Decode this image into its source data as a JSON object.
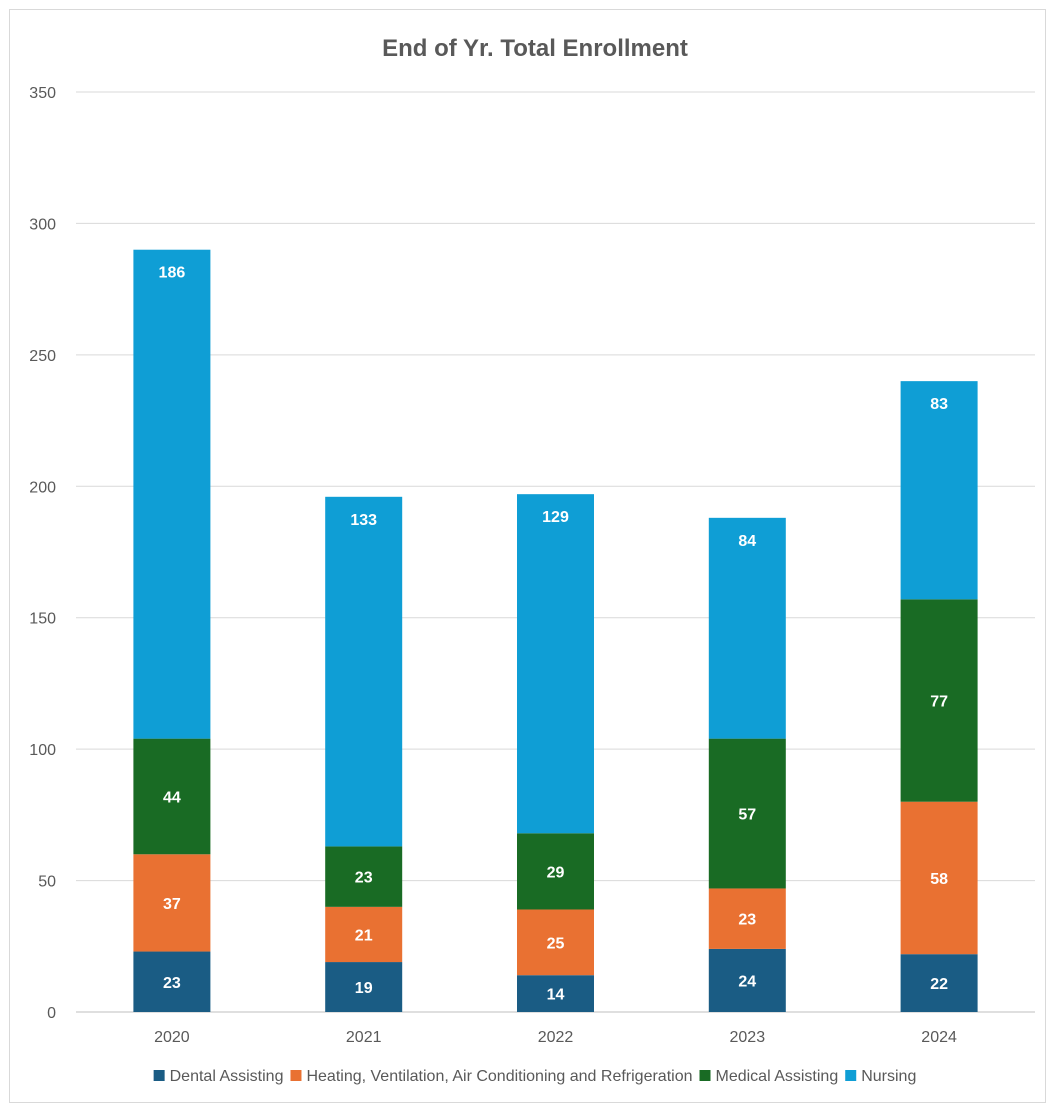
{
  "chart_data": {
    "type": "bar",
    "stacked": true,
    "title": "End of Yr. Total Enrollment",
    "xlabel": "",
    "ylabel": "",
    "ylim": [
      0,
      350
    ],
    "yticks": [
      0,
      50,
      100,
      150,
      200,
      250,
      300,
      350
    ],
    "grid": true,
    "legend": "bottom",
    "categories": [
      "2020",
      "2021",
      "2022",
      "2023",
      "2024"
    ],
    "series": [
      {
        "name": "Dental Assisting",
        "color": "#1a5c84",
        "values": [
          23,
          19,
          14,
          24,
          22
        ]
      },
      {
        "name": "Heating, Ventilation, Air Conditioning and Refrigeration",
        "color": "#e97132",
        "values": [
          37,
          21,
          25,
          23,
          58
        ]
      },
      {
        "name": "Medical Assisting",
        "color": "#196b24",
        "values": [
          44,
          23,
          29,
          57,
          77
        ]
      },
      {
        "name": "Nursing",
        "color": "#0f9ed5",
        "values": [
          186,
          133,
          129,
          84,
          83
        ]
      }
    ]
  }
}
